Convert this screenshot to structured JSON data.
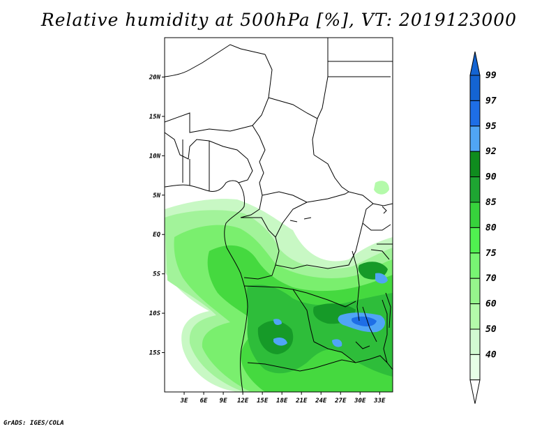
{
  "title": "Relative humidity at 500hPa [%], VT: 2019123000",
  "credit": "GrADS: IGES/COLA",
  "map": {
    "lon_range": [
      0,
      35
    ],
    "lat_range": [
      -20,
      25
    ],
    "lat_ticks": [
      {
        "value": 20,
        "label": "20N"
      },
      {
        "value": 15,
        "label": "15N"
      },
      {
        "value": 10,
        "label": "10N"
      },
      {
        "value": 5,
        "label": "5N"
      },
      {
        "value": 0,
        "label": "EQ"
      },
      {
        "value": -5,
        "label": "5S"
      },
      {
        "value": -10,
        "label": "10S"
      },
      {
        "value": -15,
        "label": "15S"
      }
    ],
    "lon_ticks": [
      {
        "value": 3,
        "label": "3E"
      },
      {
        "value": 6,
        "label": "6E"
      },
      {
        "value": 9,
        "label": "9E"
      },
      {
        "value": 12,
        "label": "12E"
      },
      {
        "value": 15,
        "label": "15E"
      },
      {
        "value": 18,
        "label": "18E"
      },
      {
        "value": 21,
        "label": "21E"
      },
      {
        "value": 24,
        "label": "24E"
      },
      {
        "value": 27,
        "label": "27E"
      },
      {
        "value": 30,
        "label": "30E"
      },
      {
        "value": 33,
        "label": "33E"
      }
    ]
  },
  "colorbar": {
    "levels": [
      {
        "label": "99",
        "color": "#1464d2"
      },
      {
        "label": "97",
        "color": "#1e6ee6"
      },
      {
        "label": "95",
        "color": "#50a5f5"
      },
      {
        "label": "92",
        "color": "#0f8c1e"
      },
      {
        "label": "90",
        "color": "#1ea532"
      },
      {
        "label": "85",
        "color": "#37d23c"
      },
      {
        "label": "80",
        "color": "#50f050"
      },
      {
        "label": "75",
        "color": "#78f573"
      },
      {
        "label": "70",
        "color": "#96f58c"
      },
      {
        "label": "60",
        "color": "#b4faaa"
      },
      {
        "label": "50",
        "color": "#d2fad2"
      },
      {
        "label": "40",
        "color": "#e6ffe6"
      }
    ],
    "top_color": "#1464d2",
    "bottom_color": "#ffffff"
  }
}
